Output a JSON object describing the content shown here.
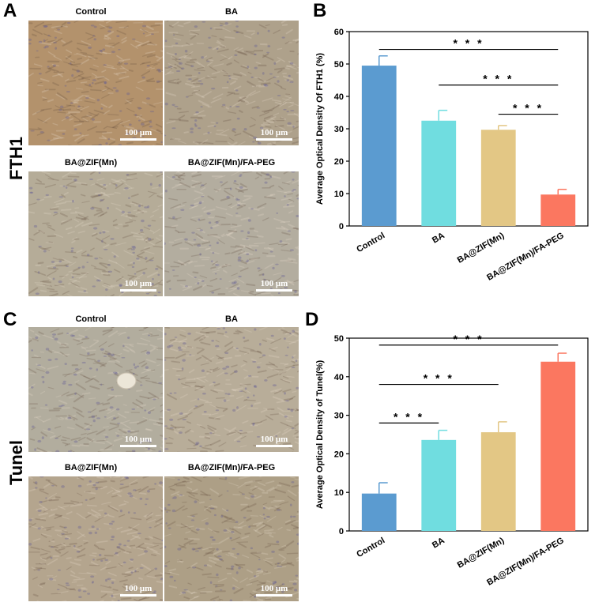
{
  "panels": {
    "A": "A",
    "B": "B",
    "C": "C",
    "D": "D"
  },
  "row_labels": {
    "top": "FTH1",
    "bottom": "Tunel"
  },
  "micrographs": {
    "scale_bar": "100 μm",
    "top": [
      {
        "title": "Control",
        "stain": "#b3926c"
      },
      {
        "title": "BA",
        "stain": "#aea18b"
      },
      {
        "title": "BA@ZIF(Mn)",
        "stain": "#b5ac98"
      },
      {
        "title": "BA@ZIF(Mn)/FA-PEG",
        "stain": "#b3ad9f"
      }
    ],
    "bottom": [
      {
        "title": "Control",
        "stain": "#b2ad9e"
      },
      {
        "title": "BA",
        "stain": "#b8ad99"
      },
      {
        "title": "BA@ZIF(Mn)",
        "stain": "#b4a58e"
      },
      {
        "title": "BA@ZIF(Mn)/FA-PEG",
        "stain": "#ad9f86"
      }
    ]
  },
  "chart_data": [
    {
      "type": "bar",
      "categories": [
        "Control",
        "BA",
        "BA@ZIF(Mn)",
        "BA@ZIF(Mn)/FA-PEG"
      ],
      "values": [
        49.5,
        32.5,
        29.7,
        9.7
      ],
      "errors": [
        3.0,
        3.2,
        1.3,
        1.6
      ],
      "colors": [
        "#5b9bd0",
        "#70dde0",
        "#e3c785",
        "#fb7760"
      ],
      "ylabel": "Average Optical Density Of FTH1 (%)",
      "ylim": [
        0,
        60
      ],
      "yticks": [
        0,
        10,
        20,
        30,
        40,
        50,
        60
      ],
      "significance": [
        {
          "from": 0,
          "to": 3,
          "y": 54.5,
          "label": "* * *"
        },
        {
          "from": 1,
          "to": 3,
          "y": 43.5,
          "label": "* * *"
        },
        {
          "from": 2,
          "to": 3,
          "y": 34.5,
          "label": "* * *"
        }
      ]
    },
    {
      "type": "bar",
      "categories": [
        "Control",
        "BA",
        "BA@ZIF(Mn)",
        "BA@ZIF(Mn)/FA-PEG"
      ],
      "values": [
        9.7,
        23.6,
        25.6,
        43.9
      ],
      "errors": [
        2.8,
        2.5,
        2.7,
        2.2
      ],
      "colors": [
        "#5b9bd0",
        "#70dde0",
        "#e3c785",
        "#fb7760"
      ],
      "ylabel": "Average Optical Density of Tunel(%)",
      "ylim": [
        0,
        50
      ],
      "yticks": [
        0,
        10,
        20,
        30,
        40,
        50
      ],
      "significance": [
        {
          "from": 0,
          "to": 3,
          "y": 48.2,
          "label": "* * *"
        },
        {
          "from": 0,
          "to": 2,
          "y": 38.0,
          "label": "* * *"
        },
        {
          "from": 0,
          "to": 1,
          "y": 28.0,
          "label": "* * *"
        }
      ]
    }
  ]
}
